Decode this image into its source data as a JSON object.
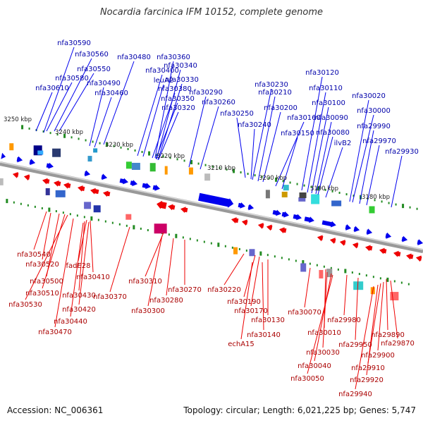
{
  "title": "Nocardia farcinica IFM 10152, complete genome",
  "accession": "Accession: NC_006361",
  "stats": "Topology: circular; Length: 6,021,225 bp; Genes: 5,747",
  "colors": {
    "forward": "#0000ee",
    "reverse": "#ee0000",
    "backbone": "#999999",
    "tick": "#228b22"
  },
  "scale_labels": [
    "3250 kbp",
    "3240 kbp",
    "3230 kbp",
    "3220 kbp",
    "3210 kbp",
    "3200 kbp",
    "3190 kbp",
    "3180 kbp"
  ],
  "forward_labels": [
    "nfa30590",
    "nfa30560",
    "nfa30550",
    "nfa30580",
    "nfa30610",
    "nfa30480",
    "nfa30490",
    "nfa30460",
    "nfa30400",
    "leuA2",
    "nfa30380",
    "nfa30350",
    "nfa30320",
    "nfa30360",
    "nfa30340",
    "nfa30330",
    "nfa30290",
    "nfa30260",
    "nfa30250",
    "nfa30240",
    "nfa30230",
    "nfa30210",
    "nfa30200",
    "nfa30160",
    "nfa30150",
    "nfa30120",
    "nfa30110",
    "nfa30100",
    "nfa30090",
    "nfa30080",
    "ilvB2",
    "nfa30020",
    "nfa30000",
    "nfa29990",
    "nfa29970",
    "nfa29930"
  ],
  "reverse_labels": [
    "nfa30540",
    "nfa30520",
    "nfa30500",
    "nfa30510",
    "nfa30530",
    "fadE28",
    "nfa30410",
    "nfa30430",
    "nfa30420",
    "nfa30440",
    "nfa30470",
    "nfa30370",
    "nfa30310",
    "nfa30300",
    "nfa30280",
    "nfa30270",
    "nfa30220",
    "nfa30190",
    "nfa30170",
    "nfa30130",
    "nfa30140",
    "echA15",
    "nfa30070",
    "nfa30010",
    "nfa30030",
    "nfa30040",
    "nfa30050",
    "nfa29980",
    "nfa29950",
    "nfa29890",
    "nfa29870",
    "nfa29900",
    "nfa29910",
    "nfa29920",
    "nfa29940"
  ]
}
